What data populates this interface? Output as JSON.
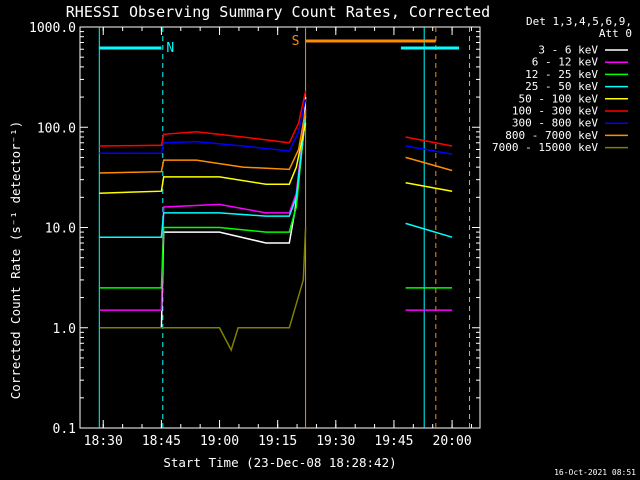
{
  "chart_data": {
    "type": "line",
    "title": "RHESSI Observing Summary Count Rates, Corrected",
    "xlabel": "Start Time (23-Dec-08 18:28:42)",
    "ylabel": "Corrected Count Rate (s⁻¹ detector⁻¹)",
    "yscale": "log",
    "ylim": [
      0.1,
      1000
    ],
    "xlim_minutes": [
      18.4,
      20.12
    ],
    "x_unit": "time of day (hours, 23-Dec-08)",
    "x_ticks": [
      "18:30",
      "18:45",
      "19:00",
      "19:15",
      "19:30",
      "19:45",
      "20:00"
    ],
    "y_ticks": [
      "0.1",
      "1.0",
      "10.0",
      "100.0",
      "1000.0"
    ],
    "legend_header": [
      "Det 1,3,4,5,6,9,",
      "Att 0"
    ],
    "legend_position": "right",
    "timestamp": "16-Oct-2021 08:51",
    "series": [
      {
        "name": "3 - 6 keV",
        "color": "#ffffff",
        "values": [
          [
            18.483,
            1.0
          ],
          [
            18.75,
            1.0
          ],
          [
            18.76,
            9.0
          ],
          [
            19.0,
            9.0
          ],
          [
            19.2,
            7.0
          ],
          [
            19.3,
            7.0
          ],
          [
            19.325,
            15
          ],
          [
            19.36,
            80
          ],
          [
            19.37,
            200
          ]
        ]
      },
      {
        "name": "6 - 12 keV",
        "color": "#ff00ff",
        "values": [
          [
            18.483,
            1.5
          ],
          [
            18.75,
            1.5
          ],
          [
            18.76,
            16
          ],
          [
            19.0,
            17
          ],
          [
            19.2,
            14
          ],
          [
            19.3,
            14
          ],
          [
            19.33,
            22
          ],
          [
            19.37,
            150
          ],
          [
            19.8,
            1.5
          ],
          [
            20.0,
            1.5
          ]
        ]
      },
      {
        "name": "12 - 25 keV",
        "color": "#00ff00",
        "values": [
          [
            18.483,
            2.5
          ],
          [
            18.75,
            2.5
          ],
          [
            18.76,
            10
          ],
          [
            19.0,
            10
          ],
          [
            19.2,
            9
          ],
          [
            19.3,
            9
          ],
          [
            19.33,
            16
          ],
          [
            19.37,
            140
          ],
          [
            19.8,
            2.5
          ],
          [
            20.0,
            2.5
          ]
        ]
      },
      {
        "name": "25 - 50 keV",
        "color": "#00ffff",
        "values": [
          [
            18.483,
            8
          ],
          [
            18.75,
            8
          ],
          [
            18.76,
            14
          ],
          [
            19.0,
            14
          ],
          [
            19.2,
            13
          ],
          [
            19.3,
            13
          ],
          [
            19.33,
            20
          ],
          [
            19.37,
            130
          ],
          [
            19.8,
            11
          ],
          [
            20.0,
            8
          ]
        ]
      },
      {
        "name": "50 - 100 keV",
        "color": "#ffff00",
        "values": [
          [
            18.483,
            22
          ],
          [
            18.75,
            23
          ],
          [
            18.76,
            32
          ],
          [
            19.0,
            32
          ],
          [
            19.2,
            27
          ],
          [
            19.3,
            27
          ],
          [
            19.33,
            40
          ],
          [
            19.37,
            110
          ],
          [
            19.8,
            28
          ],
          [
            20.0,
            23
          ]
        ]
      },
      {
        "name": "100 - 300 keV",
        "color": "#ff0000",
        "values": [
          [
            18.483,
            65
          ],
          [
            18.75,
            66
          ],
          [
            18.76,
            85
          ],
          [
            18.9,
            90
          ],
          [
            19.1,
            80
          ],
          [
            19.3,
            70
          ],
          [
            19.34,
            110
          ],
          [
            19.37,
            230
          ],
          [
            19.8,
            80
          ],
          [
            20.0,
            65
          ]
        ]
      },
      {
        "name": "300 - 800 keV",
        "color": "#0000ff",
        "values": [
          [
            18.483,
            55
          ],
          [
            18.75,
            55
          ],
          [
            18.76,
            70
          ],
          [
            18.9,
            72
          ],
          [
            19.1,
            65
          ],
          [
            19.3,
            58
          ],
          [
            19.34,
            90
          ],
          [
            19.37,
            190
          ],
          [
            19.8,
            65
          ],
          [
            20.0,
            54
          ]
        ]
      },
      {
        "name": "800 - 7000 keV",
        "color": "#ff8c00",
        "values": [
          [
            18.483,
            35
          ],
          [
            18.75,
            36
          ],
          [
            18.76,
            47
          ],
          [
            18.9,
            47
          ],
          [
            19.1,
            40
          ],
          [
            19.3,
            38
          ],
          [
            19.34,
            60
          ],
          [
            19.37,
            150
          ],
          [
            19.8,
            50
          ],
          [
            20.0,
            37
          ]
        ]
      },
      {
        "name": "7000 - 15000 keV",
        "color": "#808000",
        "values": [
          [
            18.483,
            1.0
          ],
          [
            19.0,
            1.0
          ],
          [
            19.05,
            0.6
          ],
          [
            19.08,
            1.0
          ],
          [
            19.3,
            1.0
          ],
          [
            19.36,
            3
          ],
          [
            19.37,
            10
          ]
        ]
      }
    ],
    "flag_bars": [
      {
        "label": "N",
        "color": "#00ffff",
        "ranges": [
          [
            18.483,
            18.75
          ],
          [
            19.78,
            20.03
          ]
        ]
      },
      {
        "label": "S",
        "color": "#ff8c00",
        "ranges": [
          [
            19.37,
            19.93
          ]
        ]
      }
    ],
    "vertical_markers": [
      {
        "x": 18.483,
        "color": "#00ffff",
        "style": "solid"
      },
      {
        "x": 18.756,
        "color": "#00ffff",
        "style": "dashed"
      },
      {
        "x": 19.37,
        "color": "#ff8c00",
        "style": "solid"
      },
      {
        "x": 19.88,
        "color": "#00ffff",
        "style": "solid"
      },
      {
        "x": 19.93,
        "color": "#ff8c00",
        "style": "dashed"
      },
      {
        "x": 20.075,
        "color": "#00ffff",
        "style": "dashed"
      }
    ]
  }
}
